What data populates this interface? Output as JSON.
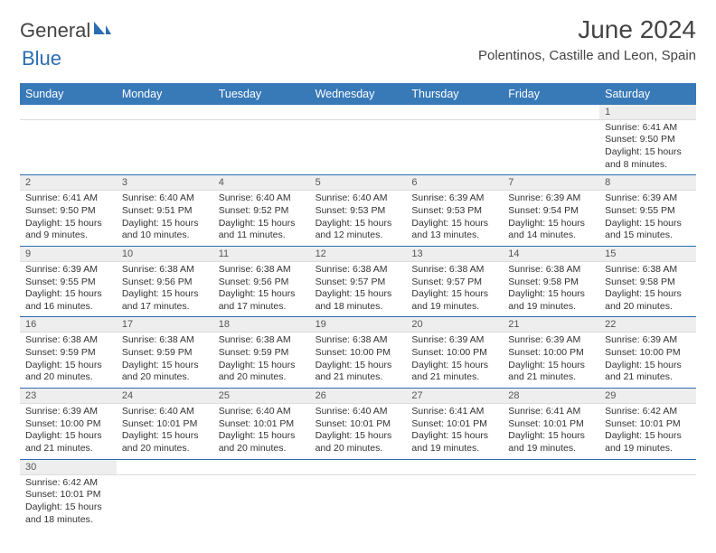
{
  "logo": {
    "text1": "General",
    "text2": "Blue"
  },
  "title": "June 2024",
  "location": "Polentinos, Castille and Leon, Spain",
  "colors": {
    "header_bg": "#3879b8",
    "header_text": "#ffffff",
    "daynum_bg": "#eeeeee",
    "border": "#2b6db2",
    "text": "#333333",
    "logo_gray": "#444444",
    "logo_blue": "#2b6db2"
  },
  "day_names": [
    "Sunday",
    "Monday",
    "Tuesday",
    "Wednesday",
    "Thursday",
    "Friday",
    "Saturday"
  ],
  "weeks": [
    {
      "nums": [
        "",
        "",
        "",
        "",
        "",
        "",
        "1"
      ],
      "cells": [
        null,
        null,
        null,
        null,
        null,
        null,
        {
          "sunrise": "Sunrise: 6:41 AM",
          "sunset": "Sunset: 9:50 PM",
          "daylight1": "Daylight: 15 hours",
          "daylight2": "and 8 minutes."
        }
      ]
    },
    {
      "nums": [
        "2",
        "3",
        "4",
        "5",
        "6",
        "7",
        "8"
      ],
      "cells": [
        {
          "sunrise": "Sunrise: 6:41 AM",
          "sunset": "Sunset: 9:50 PM",
          "daylight1": "Daylight: 15 hours",
          "daylight2": "and 9 minutes."
        },
        {
          "sunrise": "Sunrise: 6:40 AM",
          "sunset": "Sunset: 9:51 PM",
          "daylight1": "Daylight: 15 hours",
          "daylight2": "and 10 minutes."
        },
        {
          "sunrise": "Sunrise: 6:40 AM",
          "sunset": "Sunset: 9:52 PM",
          "daylight1": "Daylight: 15 hours",
          "daylight2": "and 11 minutes."
        },
        {
          "sunrise": "Sunrise: 6:40 AM",
          "sunset": "Sunset: 9:53 PM",
          "daylight1": "Daylight: 15 hours",
          "daylight2": "and 12 minutes."
        },
        {
          "sunrise": "Sunrise: 6:39 AM",
          "sunset": "Sunset: 9:53 PM",
          "daylight1": "Daylight: 15 hours",
          "daylight2": "and 13 minutes."
        },
        {
          "sunrise": "Sunrise: 6:39 AM",
          "sunset": "Sunset: 9:54 PM",
          "daylight1": "Daylight: 15 hours",
          "daylight2": "and 14 minutes."
        },
        {
          "sunrise": "Sunrise: 6:39 AM",
          "sunset": "Sunset: 9:55 PM",
          "daylight1": "Daylight: 15 hours",
          "daylight2": "and 15 minutes."
        }
      ]
    },
    {
      "nums": [
        "9",
        "10",
        "11",
        "12",
        "13",
        "14",
        "15"
      ],
      "cells": [
        {
          "sunrise": "Sunrise: 6:39 AM",
          "sunset": "Sunset: 9:55 PM",
          "daylight1": "Daylight: 15 hours",
          "daylight2": "and 16 minutes."
        },
        {
          "sunrise": "Sunrise: 6:38 AM",
          "sunset": "Sunset: 9:56 PM",
          "daylight1": "Daylight: 15 hours",
          "daylight2": "and 17 minutes."
        },
        {
          "sunrise": "Sunrise: 6:38 AM",
          "sunset": "Sunset: 9:56 PM",
          "daylight1": "Daylight: 15 hours",
          "daylight2": "and 17 minutes."
        },
        {
          "sunrise": "Sunrise: 6:38 AM",
          "sunset": "Sunset: 9:57 PM",
          "daylight1": "Daylight: 15 hours",
          "daylight2": "and 18 minutes."
        },
        {
          "sunrise": "Sunrise: 6:38 AM",
          "sunset": "Sunset: 9:57 PM",
          "daylight1": "Daylight: 15 hours",
          "daylight2": "and 19 minutes."
        },
        {
          "sunrise": "Sunrise: 6:38 AM",
          "sunset": "Sunset: 9:58 PM",
          "daylight1": "Daylight: 15 hours",
          "daylight2": "and 19 minutes."
        },
        {
          "sunrise": "Sunrise: 6:38 AM",
          "sunset": "Sunset: 9:58 PM",
          "daylight1": "Daylight: 15 hours",
          "daylight2": "and 20 minutes."
        }
      ]
    },
    {
      "nums": [
        "16",
        "17",
        "18",
        "19",
        "20",
        "21",
        "22"
      ],
      "cells": [
        {
          "sunrise": "Sunrise: 6:38 AM",
          "sunset": "Sunset: 9:59 PM",
          "daylight1": "Daylight: 15 hours",
          "daylight2": "and 20 minutes."
        },
        {
          "sunrise": "Sunrise: 6:38 AM",
          "sunset": "Sunset: 9:59 PM",
          "daylight1": "Daylight: 15 hours",
          "daylight2": "and 20 minutes."
        },
        {
          "sunrise": "Sunrise: 6:38 AM",
          "sunset": "Sunset: 9:59 PM",
          "daylight1": "Daylight: 15 hours",
          "daylight2": "and 20 minutes."
        },
        {
          "sunrise": "Sunrise: 6:38 AM",
          "sunset": "Sunset: 10:00 PM",
          "daylight1": "Daylight: 15 hours",
          "daylight2": "and 21 minutes."
        },
        {
          "sunrise": "Sunrise: 6:39 AM",
          "sunset": "Sunset: 10:00 PM",
          "daylight1": "Daylight: 15 hours",
          "daylight2": "and 21 minutes."
        },
        {
          "sunrise": "Sunrise: 6:39 AM",
          "sunset": "Sunset: 10:00 PM",
          "daylight1": "Daylight: 15 hours",
          "daylight2": "and 21 minutes."
        },
        {
          "sunrise": "Sunrise: 6:39 AM",
          "sunset": "Sunset: 10:00 PM",
          "daylight1": "Daylight: 15 hours",
          "daylight2": "and 21 minutes."
        }
      ]
    },
    {
      "nums": [
        "23",
        "24",
        "25",
        "26",
        "27",
        "28",
        "29"
      ],
      "cells": [
        {
          "sunrise": "Sunrise: 6:39 AM",
          "sunset": "Sunset: 10:00 PM",
          "daylight1": "Daylight: 15 hours",
          "daylight2": "and 21 minutes."
        },
        {
          "sunrise": "Sunrise: 6:40 AM",
          "sunset": "Sunset: 10:01 PM",
          "daylight1": "Daylight: 15 hours",
          "daylight2": "and 20 minutes."
        },
        {
          "sunrise": "Sunrise: 6:40 AM",
          "sunset": "Sunset: 10:01 PM",
          "daylight1": "Daylight: 15 hours",
          "daylight2": "and 20 minutes."
        },
        {
          "sunrise": "Sunrise: 6:40 AM",
          "sunset": "Sunset: 10:01 PM",
          "daylight1": "Daylight: 15 hours",
          "daylight2": "and 20 minutes."
        },
        {
          "sunrise": "Sunrise: 6:41 AM",
          "sunset": "Sunset: 10:01 PM",
          "daylight1": "Daylight: 15 hours",
          "daylight2": "and 19 minutes."
        },
        {
          "sunrise": "Sunrise: 6:41 AM",
          "sunset": "Sunset: 10:01 PM",
          "daylight1": "Daylight: 15 hours",
          "daylight2": "and 19 minutes."
        },
        {
          "sunrise": "Sunrise: 6:42 AM",
          "sunset": "Sunset: 10:01 PM",
          "daylight1": "Daylight: 15 hours",
          "daylight2": "and 19 minutes."
        }
      ]
    },
    {
      "nums": [
        "30",
        "",
        "",
        "",
        "",
        "",
        ""
      ],
      "cells": [
        {
          "sunrise": "Sunrise: 6:42 AM",
          "sunset": "Sunset: 10:01 PM",
          "daylight1": "Daylight: 15 hours",
          "daylight2": "and 18 minutes."
        },
        null,
        null,
        null,
        null,
        null,
        null
      ]
    }
  ]
}
